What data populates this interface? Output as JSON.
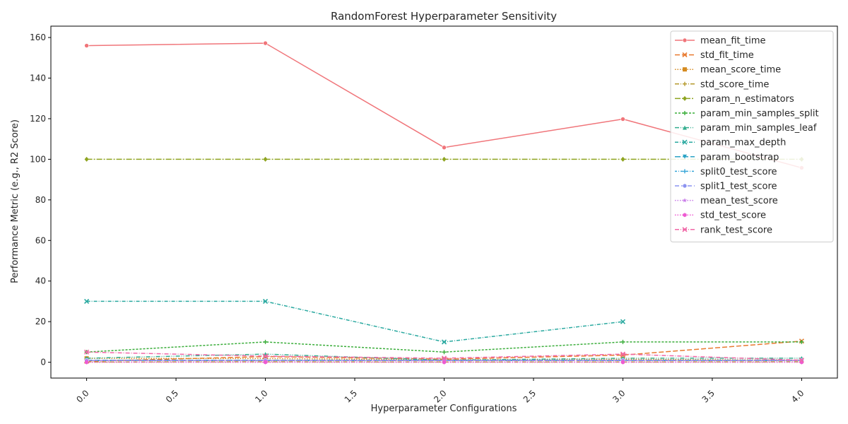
{
  "chart_data": {
    "type": "line",
    "title": "RandomForest Hyperparameter Sensitivity",
    "xlabel": "Hyperparameter Configurations",
    "ylabel": "Performance Metric (e.g., R2 Score)",
    "xlim": [
      -0.2,
      4.2
    ],
    "ylim": [
      -7.8,
      165.6
    ],
    "xticks": [
      0.0,
      0.5,
      1.0,
      1.5,
      2.0,
      2.5,
      3.0,
      3.5,
      4.0
    ],
    "xtick_labels": [
      "0.0",
      "0.5",
      "1.0",
      "1.5",
      "2.0",
      "2.5",
      "3.0",
      "3.5",
      "4.0"
    ],
    "yticks": [
      0,
      20,
      40,
      60,
      80,
      100,
      120,
      140,
      160
    ],
    "ytick_labels": [
      "0",
      "20",
      "40",
      "60",
      "80",
      "100",
      "120",
      "140",
      "160"
    ],
    "grid": false,
    "legend_position": "top-right",
    "x": [
      0,
      1,
      2,
      3,
      4
    ],
    "series": [
      {
        "name": "mean_fit_time",
        "values": [
          156.0,
          157.2,
          105.8,
          119.8,
          95.8
        ],
        "color": "#f0757a",
        "dash": "",
        "marker": "circle"
      },
      {
        "name": "std_fit_time",
        "values": [
          0.5,
          2.8,
          1.5,
          3.5,
          10.4
        ],
        "color": "#e87a30",
        "dash": "7,3",
        "marker": "x"
      },
      {
        "name": "mean_score_time",
        "values": [
          1.9,
          1.8,
          1.2,
          1.5,
          1.0
        ],
        "color": "#d58a1f",
        "dash": "1.5,2",
        "marker": "square"
      },
      {
        "name": "std_score_time",
        "values": [
          0.1,
          0.2,
          0.1,
          0.1,
          0.2
        ],
        "color": "#b59a2c",
        "dash": "6,2,1,2",
        "marker": "plus"
      },
      {
        "name": "param_n_estimators",
        "values": [
          100,
          100,
          100,
          100,
          100
        ],
        "color": "#8ea420",
        "dash": "8,2,2,2",
        "marker": "diamond"
      },
      {
        "name": "param_min_samples_split",
        "values": [
          5,
          10,
          5,
          10,
          10
        ],
        "color": "#3aad3a",
        "dash": "3,2",
        "marker": "plus"
      },
      {
        "name": "param_min_samples_leaf",
        "values": [
          2,
          4,
          1,
          2,
          2
        ],
        "color": "#34ae8f",
        "dash": "6,2,1,2,1,2",
        "marker": "triangle"
      },
      {
        "name": "param_max_depth",
        "values": [
          30,
          30,
          10,
          20,
          null
        ],
        "color": "#2aa9a0",
        "dash": "5,2,1,2",
        "marker": "x"
      },
      {
        "name": "param_bootstrap",
        "values": [
          1,
          1,
          1,
          1,
          1
        ],
        "color": "#2aa3c5",
        "dash": "8,3",
        "marker": "triangle-down"
      },
      {
        "name": "split0_test_score",
        "values": [
          0.8,
          0.8,
          0.8,
          0.8,
          0.8
        ],
        "color": "#38a6d8",
        "dash": "3,2,1,2",
        "marker": "plus"
      },
      {
        "name": "split1_test_score",
        "values": [
          0.8,
          0.8,
          0.8,
          0.8,
          0.8
        ],
        "color": "#8c93f0",
        "dash": "6,3",
        "marker": "circle"
      },
      {
        "name": "mean_test_score",
        "values": [
          0.8,
          0.8,
          0.8,
          0.8,
          0.8
        ],
        "color": "#c77ae8",
        "dash": "1.5,2",
        "marker": "star"
      },
      {
        "name": "std_test_score",
        "values": [
          0.0,
          0.0,
          0.0,
          0.0,
          0.0
        ],
        "color": "#ee5ad2",
        "dash": "1.5,2",
        "marker": "hexagon"
      },
      {
        "name": "rank_test_score",
        "values": [
          5,
          3,
          2,
          4,
          1
        ],
        "color": "#f067a7",
        "dash": "6,2,1,2",
        "marker": "x"
      }
    ]
  }
}
